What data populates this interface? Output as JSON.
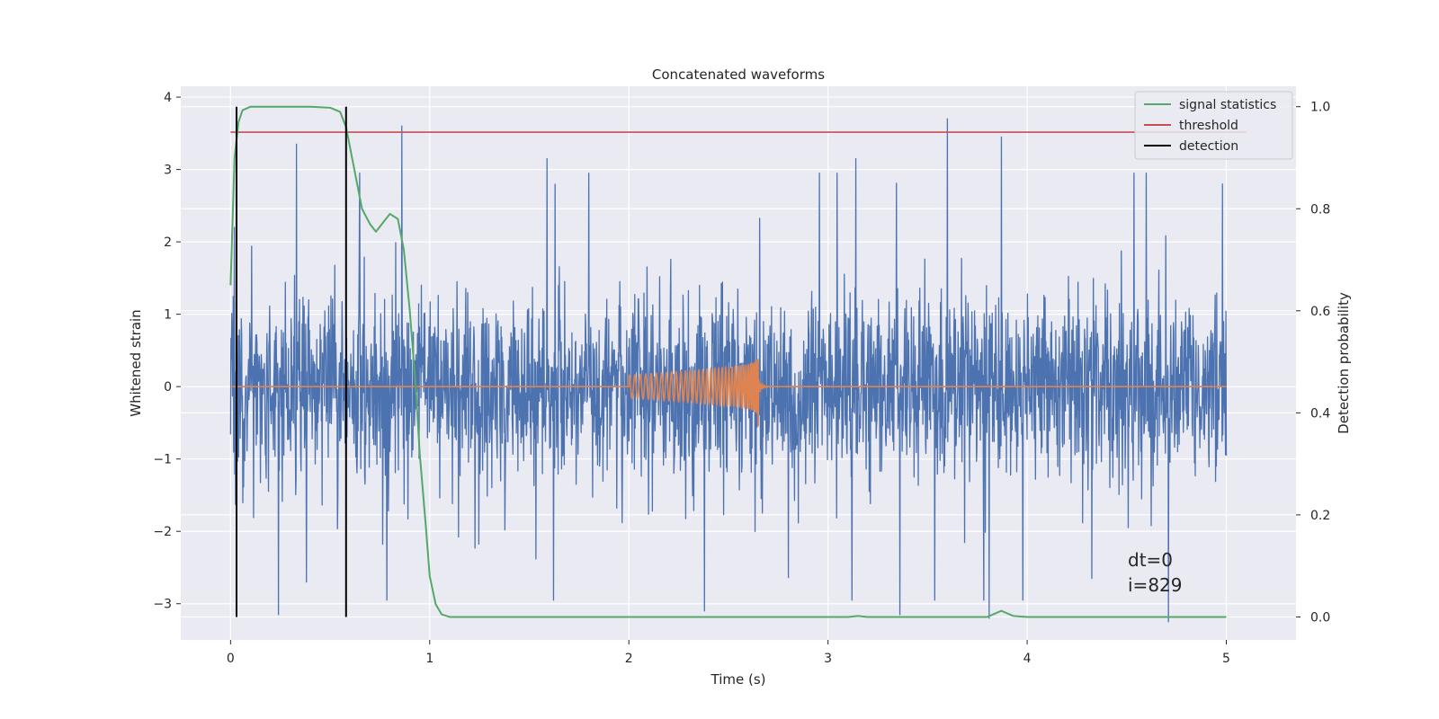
{
  "chart_data": {
    "type": "line",
    "title": "Concatenated waveforms",
    "xlabel": "Time (s)",
    "ylabel": "Whitened strain",
    "ylabel_right": "Detection probability",
    "xlim": [
      -0.25,
      5.35
    ],
    "ylim": [
      -3.5,
      4.15
    ],
    "ylim_right": [
      -0.045,
      1.04
    ],
    "x_ticks": [
      0,
      1,
      2,
      3,
      4,
      5
    ],
    "y_ticks": [
      -3,
      -2,
      -1,
      0,
      1,
      2,
      3,
      4
    ],
    "y_ticks_right": [
      0.0,
      0.2,
      0.4,
      0.6,
      0.8,
      1.0
    ],
    "x_tick_labels": [
      "0",
      "1",
      "2",
      "3",
      "4",
      "5"
    ],
    "y_tick_labels": [
      "−3",
      "−2",
      "−1",
      "0",
      "1",
      "2",
      "3",
      "4"
    ],
    "y_tick_labels_right": [
      "0.0",
      "0.2",
      "0.4",
      "0.6",
      "0.8",
      "1.0"
    ],
    "grid": true,
    "legend_position": "top-right",
    "annotations": [
      "dt=0",
      "i=829"
    ],
    "colors": {
      "background": "#eaeaf2",
      "strain": "#4c72b0",
      "template": "#dd8452",
      "signal_statistics": "#55a868",
      "threshold": "#c44e52",
      "detection": "#000000"
    },
    "series": [
      {
        "name": "",
        "axis": "left",
        "kind": "whitened-strain-noise",
        "x_range": [
          0,
          5
        ],
        "typical_envelope": [
          -1.3,
          1.3
        ],
        "peak_values": [
          {
            "x": 0.02,
            "y": 2.2
          },
          {
            "x": 0.24,
            "y": -3.15
          },
          {
            "x": 0.33,
            "y": 3.35
          },
          {
            "x": 0.38,
            "y": -2.7
          },
          {
            "x": 0.86,
            "y": 3.8
          },
          {
            "x": 0.86,
            "y": 3.6
          },
          {
            "x": 1.59,
            "y": 3.15
          },
          {
            "x": 2.38,
            "y": -3.1
          },
          {
            "x": 3.14,
            "y": 3.15
          },
          {
            "x": 3.36,
            "y": -3.15
          },
          {
            "x": 3.6,
            "y": 3.7
          },
          {
            "x": 3.81,
            "y": -3.2
          },
          {
            "x": 3.87,
            "y": 3.45
          },
          {
            "x": 4.71,
            "y": -3.25
          },
          {
            "x": 4.98,
            "y": 2.8
          }
        ]
      },
      {
        "name": "",
        "axis": "left",
        "kind": "chirp-template",
        "x_range": [
          0,
          5
        ],
        "chirp_start": 2.0,
        "merger_time": 2.65,
        "start_amplitude": 0.1,
        "peak_amplitude": 0.42,
        "min_value": -0.55
      },
      {
        "name": "signal statistics",
        "axis": "right",
        "x": [
          0.0,
          0.02,
          0.04,
          0.06,
          0.1,
          0.2,
          0.4,
          0.5,
          0.55,
          0.58,
          0.62,
          0.66,
          0.7,
          0.73,
          0.76,
          0.8,
          0.84,
          0.87,
          0.9,
          0.93,
          0.95,
          0.98,
          1.0,
          1.03,
          1.06,
          1.1,
          1.5,
          3.1,
          3.15,
          3.2,
          3.8,
          3.87,
          3.93,
          4.0,
          5.0
        ],
        "values": [
          0.65,
          0.9,
          0.97,
          0.993,
          1.0,
          1.0,
          1.0,
          0.998,
          0.99,
          0.96,
          0.88,
          0.8,
          0.77,
          0.755,
          0.77,
          0.79,
          0.78,
          0.72,
          0.6,
          0.45,
          0.32,
          0.18,
          0.08,
          0.025,
          0.005,
          0.0,
          0.0,
          0.0,
          0.002,
          0.0,
          0.0,
          0.012,
          0.002,
          0.0,
          0.0
        ]
      },
      {
        "name": "threshold",
        "axis": "right",
        "x": [
          0,
          5.1
        ],
        "values": [
          0.95,
          0.95
        ]
      },
      {
        "name": "detection",
        "axis": "right",
        "x": [
          0.03,
          0.58
        ],
        "values_from": 0.0,
        "values_to": 1.0
      }
    ]
  }
}
